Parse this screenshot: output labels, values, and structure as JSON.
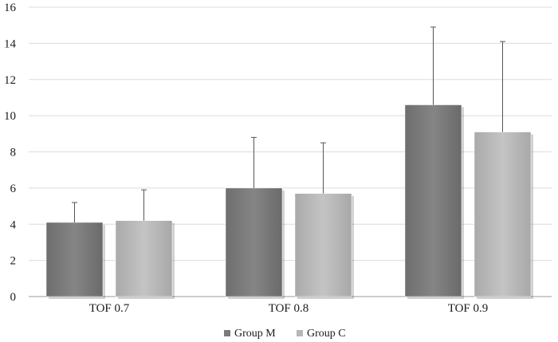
{
  "chart_data": {
    "type": "bar",
    "categories": [
      "TOF 0.7",
      "TOF 0.8",
      "TOF 0.9"
    ],
    "series": [
      {
        "name": "Group M",
        "color": "#7a7a7a",
        "values": [
          4.1,
          6.0,
          10.6
        ],
        "error": [
          1.1,
          2.8,
          4.3
        ]
      },
      {
        "name": "Group C",
        "color": "#b7b7b7",
        "values": [
          4.2,
          5.7,
          9.1
        ],
        "error": [
          1.7,
          2.8,
          5.0
        ]
      }
    ],
    "y_ticks": [
      "0",
      "2",
      "4",
      "6",
      "8",
      "10",
      "12",
      "14",
      "16"
    ],
    "ylim": [
      0,
      16
    ],
    "title": "",
    "xlabel": "",
    "ylabel": "",
    "grid": true,
    "legend_position": "bottom-center"
  }
}
